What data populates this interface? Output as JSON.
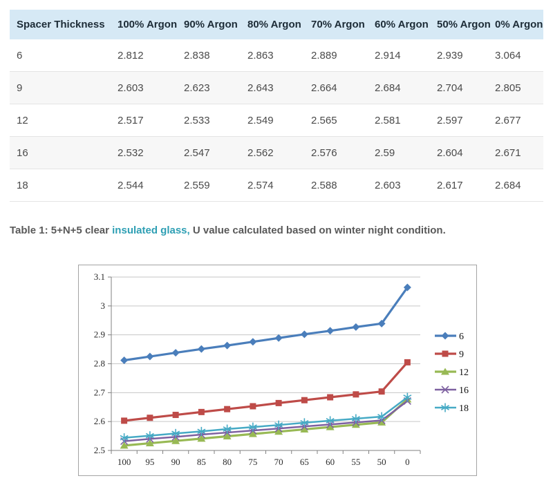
{
  "table": {
    "header_bg": "#d6e9f5",
    "row_alt_bg": "#f7f7f7",
    "headers": [
      "Spacer Thickness",
      "100% Argon",
      "90% Argon",
      "80% Argon",
      "70% Argon",
      "60% Argon",
      "50% Argon",
      "0% Argon"
    ],
    "rows": [
      [
        "6",
        "2.812",
        "2.838",
        "2.863",
        "2.889",
        "2.914",
        "2.939",
        "3.064"
      ],
      [
        "9",
        "2.603",
        "2.623",
        "2.643",
        "2.664",
        "2.684",
        "2.704",
        "2.805"
      ],
      [
        "12",
        "2.517",
        "2.533",
        "2.549",
        "2.565",
        "2.581",
        "2.597",
        "2.677"
      ],
      [
        "16",
        "2.532",
        "2.547",
        "2.562",
        "2.576",
        "2.59",
        "2.604",
        "2.671"
      ],
      [
        "18",
        "2.544",
        "2.559",
        "2.574",
        "2.588",
        "2.603",
        "2.617",
        "2.684"
      ]
    ]
  },
  "caption": {
    "prefix": "Table 1: 5+N+5 clear ",
    "link_text": "insulated glass,",
    "suffix": " U value calculated based on winter night condition.",
    "link_color": "#2e9fb4"
  },
  "chart_data": {
    "type": "line",
    "title": "",
    "xlabel": "",
    "ylabel": "",
    "grid": true,
    "legend_position": "right",
    "ylim": [
      2.5,
      3.1
    ],
    "y_ticks": [
      "2.5",
      "2.6",
      "2.7",
      "2.8",
      "2.9",
      "3",
      "3.1"
    ],
    "categories": [
      "100",
      "95",
      "90",
      "85",
      "80",
      "75",
      "70",
      "65",
      "60",
      "55",
      "50",
      "0"
    ],
    "colors": {
      "grid": "#c6c6c6",
      "axis": "#808080",
      "frame_border": "#a3a3a3"
    },
    "series": [
      {
        "name": "6",
        "color": "#4a7ebb",
        "marker": "diamond",
        "line_width": 3.2,
        "values": [
          2.812,
          2.825,
          2.838,
          2.851,
          2.863,
          2.876,
          2.889,
          2.902,
          2.914,
          2.927,
          2.939,
          3.064
        ]
      },
      {
        "name": "9",
        "color": "#be4b48",
        "marker": "square",
        "line_width": 3.2,
        "values": [
          2.603,
          2.613,
          2.623,
          2.633,
          2.643,
          2.653,
          2.664,
          2.674,
          2.684,
          2.694,
          2.704,
          2.805
        ]
      },
      {
        "name": "12",
        "color": "#98b954",
        "marker": "triangle",
        "line_width": 3.2,
        "values": [
          2.517,
          2.525,
          2.533,
          2.541,
          2.549,
          2.557,
          2.565,
          2.573,
          2.581,
          2.589,
          2.597,
          2.677
        ]
      },
      {
        "name": "16",
        "color": "#7d60a0",
        "marker": "x",
        "line_width": 2.5,
        "values": [
          2.532,
          2.54,
          2.547,
          2.555,
          2.562,
          2.569,
          2.576,
          2.583,
          2.59,
          2.597,
          2.604,
          2.671
        ]
      },
      {
        "name": "18",
        "color": "#46aac5",
        "marker": "asterisk",
        "line_width": 2.5,
        "values": [
          2.544,
          2.551,
          2.559,
          2.566,
          2.574,
          2.581,
          2.588,
          2.596,
          2.603,
          2.61,
          2.617,
          2.684
        ]
      }
    ]
  }
}
